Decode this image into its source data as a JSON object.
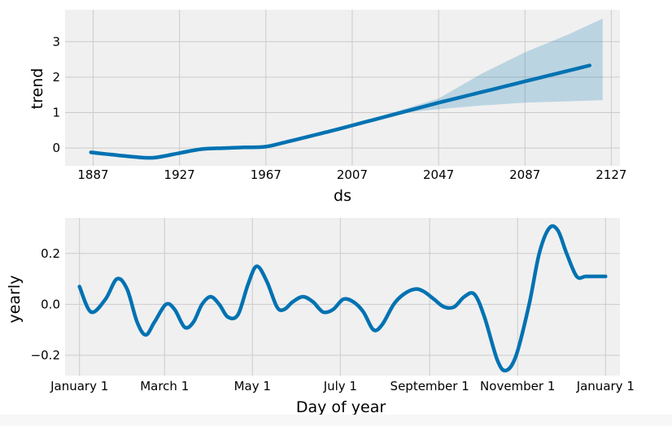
{
  "chart_data": [
    {
      "type": "line",
      "title": "",
      "xlabel": "ds",
      "ylabel": "trend",
      "xlim": [
        1874,
        2131
      ],
      "ylim": [
        -0.5,
        3.9
      ],
      "xticks": [
        1887,
        1927,
        1967,
        2007,
        2047,
        2087,
        2127
      ],
      "xtick_labels": [
        "1887",
        "1927",
        "1967",
        "2007",
        "2047",
        "2087",
        "2127"
      ],
      "yticks": [
        0,
        1,
        2,
        3
      ],
      "ytick_labels": [
        "0",
        "1",
        "2",
        "3"
      ],
      "grid": true,
      "series": [
        {
          "x": [
            1886,
            1895,
            1905,
            1915,
            1927,
            1937,
            1947,
            1957,
            1967,
            1977,
            1987,
            1997,
            2007,
            2017,
            2027,
            2037,
            2047,
            2057,
            2067,
            2077,
            2087,
            2097,
            2107,
            2117
          ],
          "y": [
            -0.12,
            -0.18,
            -0.24,
            -0.27,
            -0.14,
            -0.03,
            0.0,
            0.02,
            0.04,
            0.18,
            0.33,
            0.48,
            0.64,
            0.8,
            0.96,
            1.12,
            1.28,
            1.43,
            1.58,
            1.73,
            1.88,
            2.03,
            2.18,
            2.33
          ],
          "color": "#0072B2"
        }
      ],
      "uncertainty": {
        "color": "#0072B2",
        "x": [
          2023,
          2047,
          2067,
          2087,
          2107,
          2123
        ],
        "lower": [
          0.95,
          1.1,
          1.2,
          1.28,
          1.32,
          1.35
        ],
        "upper": [
          0.95,
          1.4,
          2.1,
          2.7,
          3.2,
          3.65
        ]
      }
    },
    {
      "type": "line",
      "title": "",
      "xlabel": "Day of year",
      "ylabel": "yearly",
      "xlim": [
        -10,
        375
      ],
      "ylim": [
        -0.28,
        0.34
      ],
      "xticks": [
        0,
        59,
        120,
        181,
        243,
        304,
        365
      ],
      "xtick_labels": [
        "January 1",
        "March 1",
        "May 1",
        "July 1",
        "September 1",
        "November 1",
        "January 1"
      ],
      "yticks": [
        -0.2,
        0.0,
        0.2
      ],
      "ytick_labels": [
        "−0.2",
        "0.0",
        "0.2"
      ],
      "grid": true,
      "series": [
        {
          "x": [
            0,
            8,
            18,
            26,
            33,
            40,
            46,
            52,
            60,
            66,
            73,
            79,
            85,
            91,
            97,
            103,
            110,
            117,
            123,
            130,
            137,
            142,
            148,
            155,
            162,
            169,
            176,
            183,
            190,
            197,
            204,
            210,
            218,
            225,
            233,
            239,
            246,
            253,
            260,
            267,
            274,
            281,
            290,
            296,
            303,
            312,
            319,
            326,
            332,
            338,
            345,
            351,
            357,
            365
          ],
          "y": [
            0.07,
            -0.03,
            0.02,
            0.1,
            0.06,
            -0.07,
            -0.12,
            -0.07,
            0.0,
            -0.02,
            -0.09,
            -0.07,
            0.0,
            0.03,
            0.0,
            -0.05,
            -0.04,
            0.08,
            0.15,
            0.09,
            -0.01,
            -0.02,
            0.01,
            0.03,
            0.01,
            -0.03,
            -0.02,
            0.02,
            0.01,
            -0.03,
            -0.1,
            -0.08,
            0.0,
            0.04,
            0.06,
            0.05,
            0.02,
            -0.01,
            -0.01,
            0.03,
            0.04,
            -0.05,
            -0.22,
            -0.26,
            -0.2,
            0.0,
            0.2,
            0.3,
            0.29,
            0.2,
            0.11,
            0.11,
            0.11,
            0.11
          ],
          "color": "#0072B2"
        }
      ]
    }
  ]
}
